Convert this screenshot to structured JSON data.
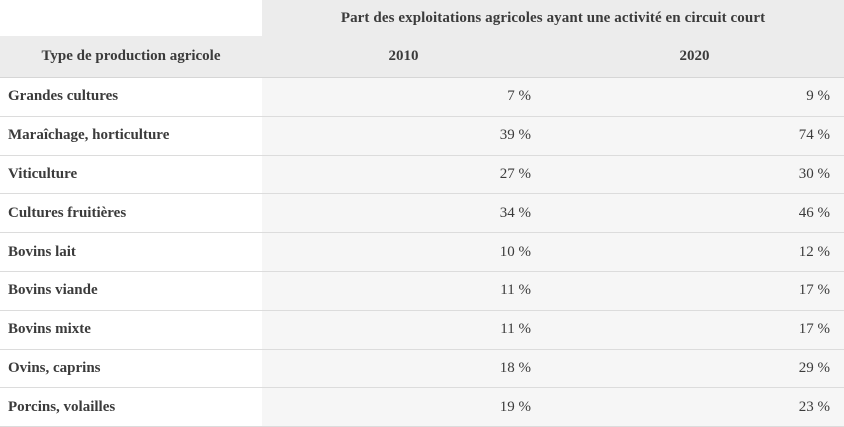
{
  "colors": {
    "header_bg": "#ececec",
    "value_column_bg": "#f6f6f6",
    "text": "#3b3b3b",
    "row_border": "#dcdcdc"
  },
  "table": {
    "span_header": "Part des exploitations agricoles ayant une activité en circuit court",
    "col_headers": [
      "Type de production agricole",
      "2010",
      "2020"
    ],
    "rows": [
      {
        "label": "Grandes cultures",
        "y2010": "7 %",
        "y2020": "9 %"
      },
      {
        "label": "Maraîchage, horticulture",
        "y2010": "39 %",
        "y2020": "74 %"
      },
      {
        "label": "Viticulture",
        "y2010": "27 %",
        "y2020": "30 %"
      },
      {
        "label": "Cultures fruitières",
        "y2010": "34 %",
        "y2020": "46 %"
      },
      {
        "label": "Bovins lait",
        "y2010": "10 %",
        "y2020": "12 %"
      },
      {
        "label": "Bovins viande",
        "y2010": "11 %",
        "y2020": "17 %"
      },
      {
        "label": "Bovins mixte",
        "y2010": "11 %",
        "y2020": "17 %"
      },
      {
        "label": "Ovins, caprins",
        "y2010": "18 %",
        "y2020": "29 %"
      },
      {
        "label": "Porcins, volailles",
        "y2010": "19 %",
        "y2020": "23 %"
      }
    ]
  },
  "chart_data": {
    "type": "table",
    "title": "Part des exploitations agricoles ayant une activité en circuit court",
    "row_header": "Type de production agricole",
    "categories": [
      "Grandes cultures",
      "Maraîchage, horticulture",
      "Viticulture",
      "Cultures fruitières",
      "Bovins lait",
      "Bovins viande",
      "Bovins mixte",
      "Ovins, caprins",
      "Porcins, volailles"
    ],
    "series": [
      {
        "name": "2010",
        "values": [
          7,
          39,
          27,
          34,
          10,
          11,
          11,
          18,
          19
        ]
      },
      {
        "name": "2020",
        "values": [
          9,
          74,
          30,
          46,
          12,
          17,
          17,
          29,
          23
        ]
      }
    ],
    "unit": "%"
  }
}
